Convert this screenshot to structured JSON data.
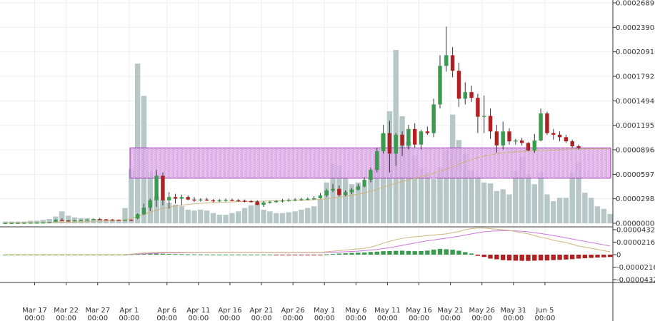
{
  "chart_data": [
    {
      "type": "candlestick",
      "panel": "price",
      "x_labels": [
        {
          "date": "Mar 17",
          "time": "00:00"
        },
        {
          "date": "Mar 22",
          "time": "00:00"
        },
        {
          "date": "Mar 27",
          "time": "00:00"
        },
        {
          "date": "Apr 1",
          "time": "00:00"
        },
        {
          "date": "Apr 6",
          "time": "00:00"
        },
        {
          "date": "Apr 11",
          "time": "00:00"
        },
        {
          "date": "Apr 16",
          "time": "00:00"
        },
        {
          "date": "Apr 21",
          "time": "00:00"
        },
        {
          "date": "Apr 26",
          "time": "00:00"
        },
        {
          "date": "May 1",
          "time": "00:00"
        },
        {
          "date": "May 6",
          "time": "00:00"
        },
        {
          "date": "May 11",
          "time": "00:00"
        },
        {
          "date": "May 16",
          "time": "00:00"
        },
        {
          "date": "May 21",
          "time": "00:00"
        },
        {
          "date": "May 26",
          "time": "00:00"
        },
        {
          "date": "May 31",
          "time": "00:00"
        },
        {
          "date": "Jun 5",
          "time": "00:00"
        }
      ],
      "y_ticks": [
        "0.00026892",
        "0.00023904",
        "0.00020916",
        "0.00017928",
        "0.00014940",
        "0.00011952",
        "0.00008964",
        "0.00005976",
        "0.00002988",
        "0.00000000"
      ],
      "ylim": [
        0,
        0.00026892
      ],
      "grid": true,
      "highlight_band": {
        "from": 5.5e-05,
        "to": 9.2e-05,
        "color": "#c070d0"
      },
      "candles": [
        {
          "o": 2e-07,
          "h": 4e-07,
          "l": 1e-07,
          "c": 3e-07
        },
        {
          "o": 3e-07,
          "h": 5e-07,
          "l": 2e-07,
          "c": 4e-07
        },
        {
          "o": 4e-07,
          "h": 6e-07,
          "l": 3e-07,
          "c": 5e-07
        },
        {
          "o": 5e-07,
          "h": 7e-07,
          "l": 4e-07,
          "c": 6e-07
        },
        {
          "o": 6e-07,
          "h": 8e-07,
          "l": 5e-07,
          "c": 7e-07
        },
        {
          "o": 7e-07,
          "h": 9e-07,
          "l": 6e-07,
          "c": 8e-07
        },
        {
          "o": 8e-07,
          "h": 1.2e-06,
          "l": 7e-07,
          "c": 1e-06
        },
        {
          "o": 1e-06,
          "h": 1.4e-06,
          "l": 9e-07,
          "c": 1.2e-06
        },
        {
          "o": 2e-06,
          "h": 5e-06,
          "l": 1.8e-06,
          "c": 4e-06
        },
        {
          "o": 4e-06,
          "h": 6e-06,
          "l": 3.5e-06,
          "c": 3.5e-06
        },
        {
          "o": 3.5e-06,
          "h": 4e-06,
          "l": 3e-06,
          "c": 3.2e-06
        },
        {
          "o": 3.2e-06,
          "h": 4e-06,
          "l": 2.8e-06,
          "c": 3.6e-06
        },
        {
          "o": 3.6e-06,
          "h": 4.5e-06,
          "l": 3e-06,
          "c": 3.8e-06
        },
        {
          "o": 3.8e-06,
          "h": 4.8e-06,
          "l": 3.4e-06,
          "c": 4.4e-06
        },
        {
          "o": 4.4e-06,
          "h": 6e-06,
          "l": 4e-06,
          "c": 5.2e-06
        },
        {
          "o": 5.2e-06,
          "h": 6.5e-06,
          "l": 4.5e-06,
          "c": 4.8e-06
        },
        {
          "o": 4.8e-06,
          "h": 5.2e-06,
          "l": 4e-06,
          "c": 4.5e-06
        },
        {
          "o": 4.5e-06,
          "h": 5.2e-06,
          "l": 4.1e-06,
          "c": 4.3e-06
        },
        {
          "o": 4.3e-06,
          "h": 4.8e-06,
          "l": 3.9e-06,
          "c": 4e-06
        },
        {
          "o": 4e-06,
          "h": 4.5e-06,
          "l": 3.6e-06,
          "c": 4.2e-06
        },
        {
          "o": 4.2e-06,
          "h": 4.8e-06,
          "l": 3.8e-06,
          "c": 4.1e-06
        },
        {
          "o": 6e-06,
          "h": 1.2e-05,
          "l": 5e-06,
          "c": 1.1e-05
        },
        {
          "o": 1.1e-05,
          "h": 2.4e-05,
          "l": 1e-05,
          "c": 1.9e-05
        },
        {
          "o": 1.9e-05,
          "h": 3e-05,
          "l": 1.5e-05,
          "c": 2.8e-05
        },
        {
          "o": 2.8e-05,
          "h": 6.5e-05,
          "l": 2e-05,
          "c": 5.8e-05
        },
        {
          "o": 5.8e-05,
          "h": 6.2e-05,
          "l": 2.2e-05,
          "c": 2.8e-05
        },
        {
          "o": 2.8e-05,
          "h": 3.8e-05,
          "l": 1.8e-05,
          "c": 3.2e-05
        },
        {
          "o": 3.2e-05,
          "h": 3.6e-05,
          "l": 2.4e-05,
          "c": 3e-05
        },
        {
          "o": 3e-05,
          "h": 3.5e-05,
          "l": 2.2e-05,
          "c": 3.2e-05
        },
        {
          "o": 3.2e-05,
          "h": 3.4e-05,
          "l": 2.8e-05,
          "c": 2.9e-05
        },
        {
          "o": 2.9e-05,
          "h": 3.2e-05,
          "l": 2.6e-05,
          "c": 2.85e-05
        },
        {
          "o": 2.85e-05,
          "h": 3.05e-05,
          "l": 2.65e-05,
          "c": 2.9e-05
        },
        {
          "o": 2.9e-05,
          "h": 3.1e-05,
          "l": 2.7e-05,
          "c": 2.8e-05
        },
        {
          "o": 2.8e-05,
          "h": 2.95e-05,
          "l": 2.55e-05,
          "c": 2.75e-05
        },
        {
          "o": 2.75e-05,
          "h": 2.95e-05,
          "l": 2.6e-05,
          "c": 2.8e-05
        },
        {
          "o": 2.8e-05,
          "h": 3e-05,
          "l": 2.65e-05,
          "c": 2.85e-05
        },
        {
          "o": 2.85e-05,
          "h": 3e-05,
          "l": 2.7e-05,
          "c": 2.8e-05
        },
        {
          "o": 2.8e-05,
          "h": 2.95e-05,
          "l": 2.62e-05,
          "c": 2.76e-05
        },
        {
          "o": 2.76e-05,
          "h": 2.9e-05,
          "l": 2.55e-05,
          "c": 2.7e-05
        },
        {
          "o": 2.7e-05,
          "h": 2.85e-05,
          "l": 2.52e-05,
          "c": 2.65e-05
        },
        {
          "o": 2.65e-05,
          "h": 2.82e-05,
          "l": 2.2e-05,
          "c": 2.25e-05
        },
        {
          "o": 2.25e-05,
          "h": 2.7e-05,
          "l": 2e-05,
          "c": 2.55e-05
        },
        {
          "o": 2.55e-05,
          "h": 2.75e-05,
          "l": 2.4e-05,
          "c": 2.62e-05
        },
        {
          "o": 2.62e-05,
          "h": 2.85e-05,
          "l": 2.5e-05,
          "c": 2.7e-05
        },
        {
          "o": 2.7e-05,
          "h": 2.95e-05,
          "l": 2.55e-05,
          "c": 2.78e-05
        },
        {
          "o": 2.78e-05,
          "h": 3e-05,
          "l": 2.62e-05,
          "c": 2.85e-05
        },
        {
          "o": 2.85e-05,
          "h": 3.05e-05,
          "l": 2.7e-05,
          "c": 2.9e-05
        },
        {
          "o": 2.9e-05,
          "h": 3.1e-05,
          "l": 2.74e-05,
          "c": 2.94e-05
        },
        {
          "o": 2.94e-05,
          "h": 3.15e-05,
          "l": 2.8e-05,
          "c": 2.98e-05
        },
        {
          "o": 2.98e-05,
          "h": 3.3e-05,
          "l": 2.85e-05,
          "c": 3.05e-05
        },
        {
          "o": 3.05e-05,
          "h": 3.7e-05,
          "l": 3e-05,
          "c": 3.4e-05
        },
        {
          "o": 3.4e-05,
          "h": 4.2e-05,
          "l": 3.2e-05,
          "c": 4e-05
        },
        {
          "o": 4e-05,
          "h": 4.8e-05,
          "l": 3.8e-05,
          "c": 4.2e-05
        },
        {
          "o": 4.2e-05,
          "h": 4.6e-05,
          "l": 3.3e-05,
          "c": 3.45e-05
        },
        {
          "o": 3.45e-05,
          "h": 4e-05,
          "l": 3.3e-05,
          "c": 3.8e-05
        },
        {
          "o": 3.8e-05,
          "h": 4.3e-05,
          "l": 3.55e-05,
          "c": 4.1e-05
        },
        {
          "o": 4.1e-05,
          "h": 4.8e-05,
          "l": 4e-05,
          "c": 4.5e-05
        },
        {
          "o": 4.5e-05,
          "h": 5.6e-05,
          "l": 4.4e-05,
          "c": 5.3e-05
        },
        {
          "o": 5.3e-05,
          "h": 6.8e-05,
          "l": 5e-05,
          "c": 6.5e-05
        },
        {
          "o": 6.5e-05,
          "h": 9.2e-05,
          "l": 6.2e-05,
          "c": 8.8e-05
        },
        {
          "o": 8.8e-05,
          "h": 0.00012,
          "l": 8.5e-05,
          "c": 0.00011
        },
        {
          "o": 0.00011,
          "h": 0.000125,
          "l": 6.2e-05,
          "c": 8.5e-05
        },
        {
          "o": 8.5e-05,
          "h": 0.00011,
          "l": 7e-05,
          "c": 0.000108
        },
        {
          "o": 0.000108,
          "h": 0.000112,
          "l": 8.2e-05,
          "c": 9.5e-05
        },
        {
          "o": 9.5e-05,
          "h": 0.00012,
          "l": 9e-05,
          "c": 0.000115
        },
        {
          "o": 0.000115,
          "h": 0.000122,
          "l": 9.2e-05,
          "c": 9.6e-05
        },
        {
          "o": 9.6e-05,
          "h": 0.000114,
          "l": 9e-05,
          "c": 0.000112
        },
        {
          "o": 0.000112,
          "h": 0.000118,
          "l": 0.000108,
          "c": 0.00011
        },
        {
          "o": 0.00011,
          "h": 0.000152,
          "l": 0.000105,
          "c": 0.000145
        },
        {
          "o": 0.000145,
          "h": 0.000205,
          "l": 0.00014,
          "c": 0.000192
        },
        {
          "o": 0.000192,
          "h": 0.00024,
          "l": 0.000185,
          "c": 0.000205
        },
        {
          "o": 0.000205,
          "h": 0.000215,
          "l": 0.000178,
          "c": 0.000186
        },
        {
          "o": 0.000186,
          "h": 0.000196,
          "l": 0.000142,
          "c": 0.000152
        },
        {
          "o": 0.000152,
          "h": 0.000172,
          "l": 0.000145,
          "c": 0.00016
        },
        {
          "o": 0.00016,
          "h": 0.000168,
          "l": 0.000148,
          "c": 0.000153
        },
        {
          "o": 0.000153,
          "h": 0.000158,
          "l": 0.00011,
          "c": 0.00013
        },
        {
          "o": 0.00013,
          "h": 0.000156,
          "l": 0.00011,
          "c": 0.000131
        },
        {
          "o": 0.000131,
          "h": 0.00014,
          "l": 0.000103,
          "c": 0.000112
        },
        {
          "o": 0.000112,
          "h": 0.00012,
          "l": 8.6e-05,
          "c": 9.5e-05
        },
        {
          "o": 9.5e-05,
          "h": 0.000124,
          "l": 9e-05,
          "c": 0.000112
        },
        {
          "o": 0.000112,
          "h": 0.000116,
          "l": 9.6e-05,
          "c": 0.0001
        },
        {
          "o": 0.0001,
          "h": 0.000103,
          "l": 9.6e-05,
          "c": 0.000101
        },
        {
          "o": 0.000101,
          "h": 0.000104,
          "l": 9.5e-05,
          "c": 9.8e-05
        },
        {
          "o": 9.8e-05,
          "h": 9.9e-05,
          "l": 8.8e-05,
          "c": 8.9e-05
        },
        {
          "o": 8.9e-05,
          "h": 0.000109,
          "l": 8.6e-05,
          "c": 0.000101
        },
        {
          "o": 0.000101,
          "h": 0.00014,
          "l": 0.0001,
          "c": 0.000134
        },
        {
          "o": 0.000134,
          "h": 0.000136,
          "l": 0.000108,
          "c": 0.00011
        },
        {
          "o": 0.00011,
          "h": 0.000115,
          "l": 0.000102,
          "c": 0.000108
        },
        {
          "o": 0.000108,
          "h": 0.000112,
          "l": 0.0001,
          "c": 0.000105
        },
        {
          "o": 0.000105,
          "h": 0.000108,
          "l": 9.8e-05,
          "c": 0.0001
        },
        {
          "o": 0.0001,
          "h": 0.000102,
          "l": 9.2e-05,
          "c": 9.4e-05
        },
        {
          "o": 9.4e-05,
          "h": 9.6e-05,
          "l": 9e-05,
          "c": 9.2e-05
        }
      ],
      "volume": [
        2,
        2,
        2,
        2,
        3,
        3,
        4,
        5,
        8,
        14,
        9,
        7,
        6,
        6,
        5,
        5,
        4,
        4,
        3,
        18,
        64,
        188,
        150,
        60,
        32,
        28,
        24,
        22,
        20,
        16,
        15,
        16,
        15,
        12,
        10,
        10,
        12,
        14,
        18,
        21,
        24,
        16,
        14,
        12,
        12,
        13,
        14,
        16,
        18,
        20,
        28,
        48,
        70,
        68,
        54,
        46,
        48,
        44,
        54,
        80,
        105,
        132,
        204,
        126,
        96,
        80,
        64,
        60,
        52,
        66,
        86,
        128,
        98,
        82,
        62,
        56,
        48,
        47,
        38,
        40,
        34,
        62,
        78,
        58,
        46,
        60,
        34,
        26,
        30,
        30,
        60,
        72,
        36,
        30,
        20,
        17,
        11
      ],
      "ma": [
        3e-07,
        4e-07,
        5e-07,
        6e-07,
        7e-07,
        8e-07,
        9e-07,
        1e-06,
        1.1e-06,
        1.3e-06,
        1.4e-06,
        1.6e-06,
        1.8e-06,
        2e-06,
        2.4e-06,
        2.8e-06,
        3.2e-06,
        3.6e-06,
        3.8e-06,
        4.2e-06,
        6e-06,
        8.5e-06,
        1.1e-05,
        1.35e-05,
        1.6e-05,
        1.8e-05,
        1.95e-05,
        2.1e-05,
        2.2e-05,
        2.3e-05,
        2.38e-05,
        2.44e-05,
        2.48e-05,
        2.52e-05,
        2.55e-05,
        2.58e-05,
        2.61e-05,
        2.64e-05,
        2.66e-05,
        2.68e-05,
        2.69e-05,
        2.7e-05,
        2.72e-05,
        2.74e-05,
        2.76e-05,
        2.78e-05,
        2.8e-05,
        2.82e-05,
        2.84e-05,
        2.87e-05,
        2.92e-05,
        3e-05,
        3.1e-05,
        3.2e-05,
        3.3e-05,
        3.42e-05,
        3.55e-05,
        3.7e-05,
        3.9e-05,
        4.15e-05,
        4.4e-05,
        4.65e-05,
        4.9e-05,
        5.1e-05,
        5.3e-05,
        5.5e-05,
        5.7e-05,
        5.9e-05,
        6.1e-05,
        6.35e-05,
        6.6e-05,
        6.9e-05,
        7.2e-05,
        7.5e-05,
        7.75e-05,
        8e-05,
        8.2e-05,
        8.35e-05,
        8.48e-05,
        8.58e-05,
        8.66e-05,
        8.72e-05,
        8.77e-05,
        8.81e-05,
        8.84e-05,
        8.87e-05,
        8.9e-05,
        8.93e-05,
        8.96e-05,
        9e-05,
        9.03e-05,
        9.05e-05,
        9.07e-05,
        9.08e-05,
        9.09e-05,
        9.09e-05,
        9.1e-05
      ]
    },
    {
      "type": "macd",
      "panel": "indicator",
      "y_ticks": [
        "0.0000432",
        "0.0000216",
        "0",
        "-0.0000216",
        "-0.0000432"
      ],
      "ylim": [
        -4.32e-05,
        4.32e-05
      ],
      "grid": true,
      "colors": {
        "up": "#3a9a4e",
        "down": "#b02020",
        "macd": "#cbb67c",
        "signal": "#cc77dd"
      },
      "series": {
        "macd": [
          0,
          0,
          0,
          0,
          0,
          0,
          0,
          0,
          0,
          0,
          0,
          0,
          0,
          0,
          0,
          0,
          0,
          0,
          0,
          0,
          1,
          2,
          3,
          4,
          4,
          4,
          4,
          4,
          4,
          4,
          4,
          4,
          4,
          4,
          4,
          4,
          4,
          4,
          4,
          4,
          4,
          4,
          4,
          4,
          4,
          4,
          4,
          4,
          4,
          4,
          4,
          5,
          6,
          7,
          8,
          9,
          10,
          11,
          13,
          16,
          20,
          23,
          26,
          28,
          30,
          31,
          32,
          33,
          34,
          35,
          36,
          38,
          40,
          43,
          45,
          46,
          46,
          45,
          44,
          43,
          42,
          40,
          38,
          36,
          33,
          30,
          28,
          25,
          23,
          21,
          18,
          15,
          13,
          11,
          9,
          7,
          5
        ],
        "signal": [
          0,
          0,
          0,
          0,
          0,
          0,
          0,
          0,
          0,
          0,
          0,
          0,
          0,
          0,
          0,
          0,
          0,
          0,
          0,
          0,
          0.5,
          1,
          1.5,
          2,
          2.5,
          3,
          3,
          3,
          3.3,
          3.5,
          3.6,
          3.7,
          3.8,
          3.8,
          3.8,
          3.8,
          3.8,
          3.8,
          3.8,
          3.8,
          3.8,
          3.8,
          3.8,
          3.8,
          3.8,
          3.8,
          3.8,
          3.8,
          3.8,
          3.8,
          3.8,
          4,
          4.3,
          4.6,
          5,
          5.5,
          6,
          7,
          8,
          9,
          10.5,
          12,
          14,
          16,
          18,
          20,
          22,
          24,
          25.5,
          27,
          28.5,
          30,
          32,
          34,
          36,
          38,
          39.5,
          40.5,
          41,
          41.5,
          41.5,
          41,
          40.5,
          39.5,
          38,
          36.5,
          35,
          33,
          31,
          29,
          27,
          25,
          23,
          21,
          19,
          17,
          15
        ],
        "histogram": [
          0,
          0,
          0,
          0,
          0,
          0,
          0,
          0,
          0,
          0,
          0,
          0,
          0,
          0,
          0,
          0,
          0,
          0,
          0,
          0,
          0.6,
          1,
          1.6,
          2,
          2,
          1.6,
          1.2,
          1,
          0.8,
          0.6,
          0.5,
          0.4,
          0.3,
          0.2,
          0.2,
          0.2,
          0.2,
          0.2,
          0.2,
          0.2,
          0.2,
          0.2,
          0.2,
          -0.4,
          -0.4,
          -0.4,
          -0.4,
          -0.4,
          -0.4,
          -0.4,
          -0.4,
          0.6,
          1.2,
          1.8,
          2.4,
          3,
          3.4,
          3.8,
          4.6,
          5.2,
          6,
          6.2,
          6.6,
          6.8,
          6.4,
          6,
          6.2,
          7,
          8.8,
          10,
          9.4,
          8.6,
          6.8,
          4.4,
          2,
          -2,
          -4,
          -6.8,
          -8,
          -9.4,
          -10,
          -10.4,
          -10.6,
          -10.8,
          -10.4,
          -10,
          -10,
          -9.4,
          -9,
          -8.4,
          -7.8,
          -6.8,
          -6.2,
          -5.6,
          -5,
          -4.6,
          -4
        ]
      }
    }
  ]
}
